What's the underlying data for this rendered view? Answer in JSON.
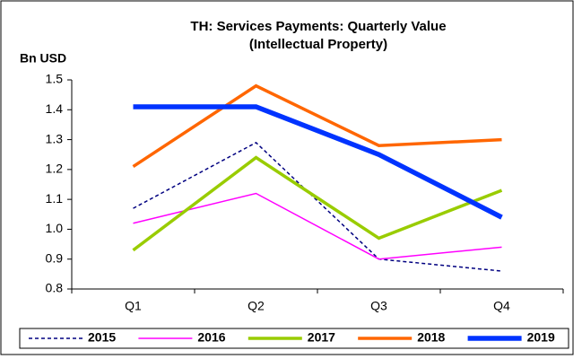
{
  "chart_data": {
    "type": "line",
    "title": "TH: Services Payments: Quarterly Value",
    "subtitle": "(Intellectual Property)",
    "y_label": "Bn USD",
    "categories": [
      "Q1",
      "Q2",
      "Q3",
      "Q4"
    ],
    "series": [
      {
        "name": "2015",
        "color": "#000080",
        "line_width": 1.5,
        "dashed": true,
        "values": [
          1.07,
          1.29,
          0.9,
          0.86
        ]
      },
      {
        "name": "2016",
        "color": "#ff00ff",
        "line_width": 1.5,
        "dashed": false,
        "values": [
          1.02,
          1.12,
          0.9,
          0.94
        ]
      },
      {
        "name": "2017",
        "color": "#99cc00",
        "line_width": 3.5,
        "dashed": false,
        "values": [
          0.93,
          1.24,
          0.97,
          1.13
        ]
      },
      {
        "name": "2018",
        "color": "#ff6600",
        "line_width": 3.5,
        "dashed": false,
        "values": [
          1.21,
          1.48,
          1.28,
          1.3
        ]
      },
      {
        "name": "2019",
        "color": "#0033ff",
        "line_width": 5.5,
        "dashed": false,
        "values": [
          1.41,
          1.41,
          1.25,
          1.04
        ]
      }
    ],
    "ylim": [
      0.8,
      1.5
    ],
    "yticks": [
      0.8,
      0.9,
      {
        "value": 1,
        "label": "1.0"
      },
      1.1,
      1.2,
      1.3,
      1.4,
      1.5
    ],
    "grid": false,
    "legend": "bottom"
  }
}
